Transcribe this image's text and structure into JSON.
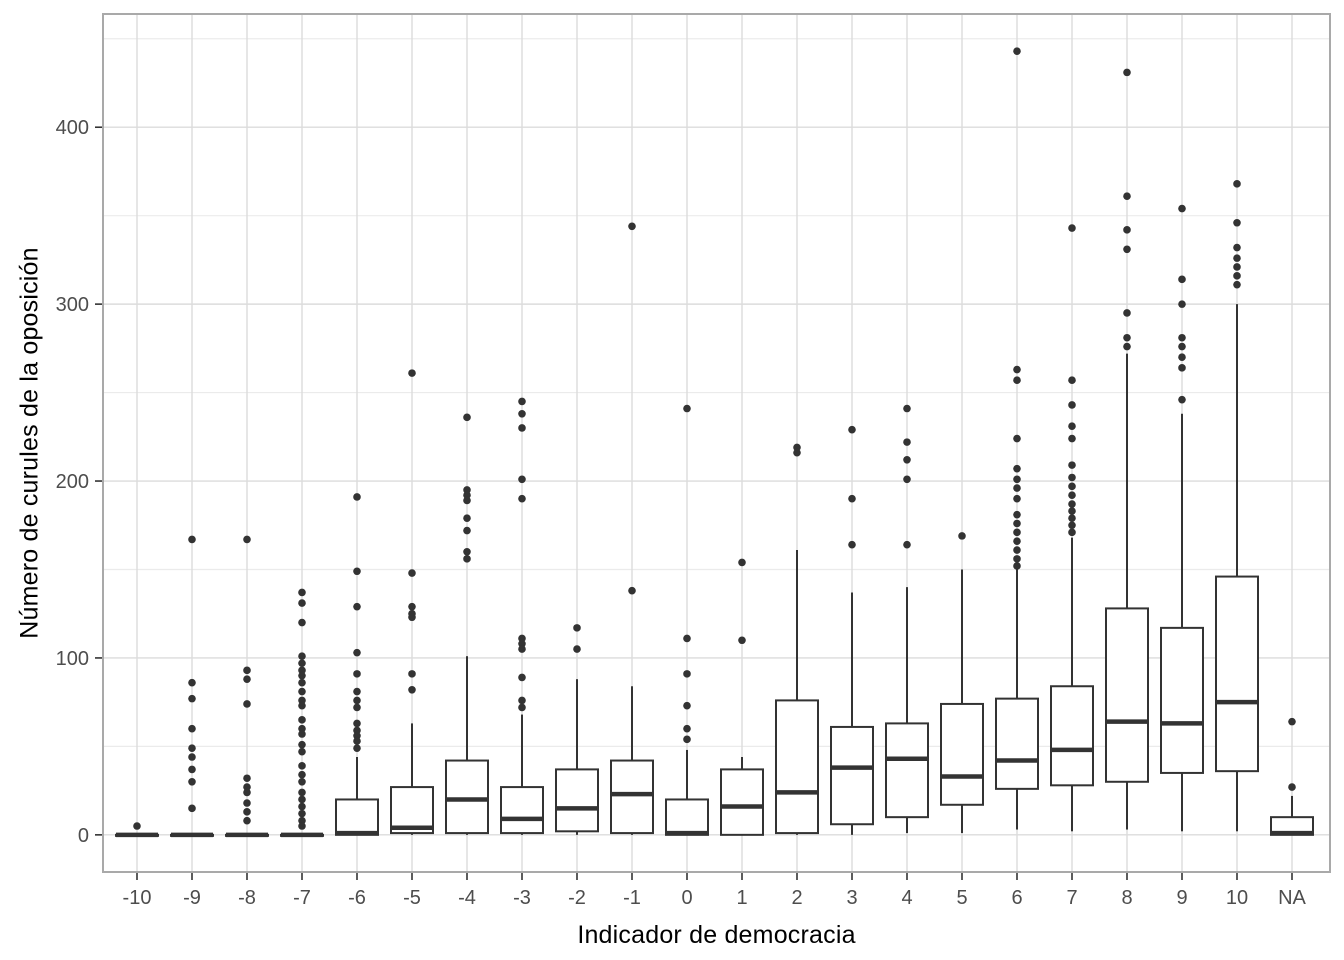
{
  "figure": {
    "background": "#ffffff"
  },
  "colors": {
    "panel_bg": "#ffffff",
    "panel_border": "#a9a9a9",
    "grid_major": "#dcdcdc",
    "grid_minor": "#ebebeb",
    "box_stroke": "#333333",
    "box_fill": "#ffffff",
    "median": "#333333",
    "outlier_dot": "#333333",
    "tick_mark": "#333333",
    "tick_label": "#4d4d4d",
    "axis_title": "#000000"
  },
  "chart_data": {
    "type": "boxplot",
    "title": "",
    "xlabel": "Indicador de democracia",
    "ylabel": "Número de curules de la oposición",
    "grid": true,
    "legend": false,
    "categories": [
      "-10",
      "-9",
      "-8",
      "-7",
      "-6",
      "-5",
      "-4",
      "-3",
      "-2",
      "-1",
      "0",
      "1",
      "2",
      "3",
      "4",
      "5",
      "6",
      "7",
      "8",
      "9",
      "10",
      "NA"
    ],
    "y_ticks": [
      0,
      100,
      200,
      300,
      400
    ],
    "y_minor_ticks": [
      50,
      150,
      250,
      350,
      450
    ],
    "ylim": [
      -21,
      464
    ],
    "boxes": [
      {
        "label": "-10",
        "min": 0,
        "q1": 0,
        "median": 0,
        "q3": 0,
        "max": 0,
        "outliers": [
          5
        ]
      },
      {
        "label": "-9",
        "min": 0,
        "q1": 0,
        "median": 0,
        "q3": 0,
        "max": 0,
        "outliers": [
          167,
          86,
          77,
          60,
          49,
          44,
          37,
          30,
          15
        ]
      },
      {
        "label": "-8",
        "min": 0,
        "q1": 0,
        "median": 0,
        "q3": 0,
        "max": 0,
        "outliers": [
          167,
          93,
          88,
          74,
          32,
          27,
          24,
          18,
          13,
          8
        ]
      },
      {
        "label": "-7",
        "min": 0,
        "q1": 0,
        "median": 0,
        "q3": 0,
        "max": 0,
        "outliers": [
          137,
          131,
          120,
          101,
          97,
          93,
          90,
          86,
          81,
          76,
          73,
          65,
          60,
          57,
          51,
          47,
          39,
          34,
          30,
          24,
          20,
          16,
          12,
          8,
          5
        ]
      },
      {
        "label": "-6",
        "min": 0,
        "q1": 0,
        "median": 1,
        "q3": 20,
        "max": 44,
        "outliers": [
          191,
          149,
          129,
          103,
          91,
          81,
          76,
          72,
          63,
          59,
          56,
          53,
          49
        ]
      },
      {
        "label": "-5",
        "min": 0,
        "q1": 1,
        "median": 4,
        "q3": 27,
        "max": 63,
        "outliers": [
          261,
          148,
          129,
          125,
          123,
          91,
          82
        ]
      },
      {
        "label": "-4",
        "min": 0,
        "q1": 1,
        "median": 20,
        "q3": 42,
        "max": 101,
        "outliers": [
          236,
          195,
          192,
          189,
          179,
          172,
          160,
          156
        ]
      },
      {
        "label": "-3",
        "min": 0,
        "q1": 1,
        "median": 9,
        "q3": 27,
        "max": 68,
        "outliers": [
          245,
          238,
          230,
          201,
          190,
          111,
          108,
          105,
          89,
          76,
          72
        ]
      },
      {
        "label": "-2",
        "min": 0,
        "q1": 2,
        "median": 15,
        "q3": 37,
        "max": 88,
        "outliers": [
          117,
          105
        ]
      },
      {
        "label": "-1",
        "min": 0,
        "q1": 1,
        "median": 23,
        "q3": 42,
        "max": 84,
        "outliers": [
          344,
          138
        ]
      },
      {
        "label": "0",
        "min": 0,
        "q1": 0,
        "median": 1,
        "q3": 20,
        "max": 48,
        "outliers": [
          241,
          111,
          91,
          73,
          60,
          54
        ]
      },
      {
        "label": "1",
        "min": 0,
        "q1": 0,
        "median": 16,
        "q3": 37,
        "max": 44,
        "outliers": [
          154,
          110
        ]
      },
      {
        "label": "2",
        "min": 0,
        "q1": 1,
        "median": 24,
        "q3": 76,
        "max": 161,
        "outliers": [
          219,
          216
        ]
      },
      {
        "label": "3",
        "min": 0,
        "q1": 6,
        "median": 38,
        "q3": 61,
        "max": 137,
        "outliers": [
          229,
          190,
          164
        ]
      },
      {
        "label": "4",
        "min": 1,
        "q1": 10,
        "median": 43,
        "q3": 63,
        "max": 140,
        "outliers": [
          241,
          222,
          212,
          201,
          164
        ]
      },
      {
        "label": "5",
        "min": 1,
        "q1": 17,
        "median": 33,
        "q3": 74,
        "max": 150,
        "outliers": [
          169
        ]
      },
      {
        "label": "6",
        "min": 3,
        "q1": 26,
        "median": 42,
        "q3": 77,
        "max": 151,
        "outliers": [
          443,
          263,
          257,
          224,
          207,
          201,
          196,
          190,
          181,
          176,
          171,
          166,
          161,
          156,
          152
        ]
      },
      {
        "label": "7",
        "min": 2,
        "q1": 28,
        "median": 48,
        "q3": 84,
        "max": 168,
        "outliers": [
          343,
          257,
          243,
          231,
          224,
          209,
          202,
          197,
          192,
          187,
          183,
          179,
          175,
          171
        ]
      },
      {
        "label": "8",
        "min": 3,
        "q1": 30,
        "median": 64,
        "q3": 128,
        "max": 272,
        "outliers": [
          431,
          361,
          342,
          331,
          295,
          281,
          276
        ]
      },
      {
        "label": "9",
        "min": 2,
        "q1": 35,
        "median": 63,
        "q3": 117,
        "max": 238,
        "outliers": [
          354,
          314,
          300,
          281,
          276,
          270,
          264,
          246
        ]
      },
      {
        "label": "10",
        "min": 2,
        "q1": 36,
        "median": 75,
        "q3": 146,
        "max": 300,
        "outliers": [
          368,
          346,
          332,
          326,
          321,
          316,
          311
        ]
      },
      {
        "label": "NA",
        "min": 0,
        "q1": 0,
        "median": 1,
        "q3": 10,
        "max": 22,
        "outliers": [
          64,
          27
        ]
      }
    ]
  }
}
